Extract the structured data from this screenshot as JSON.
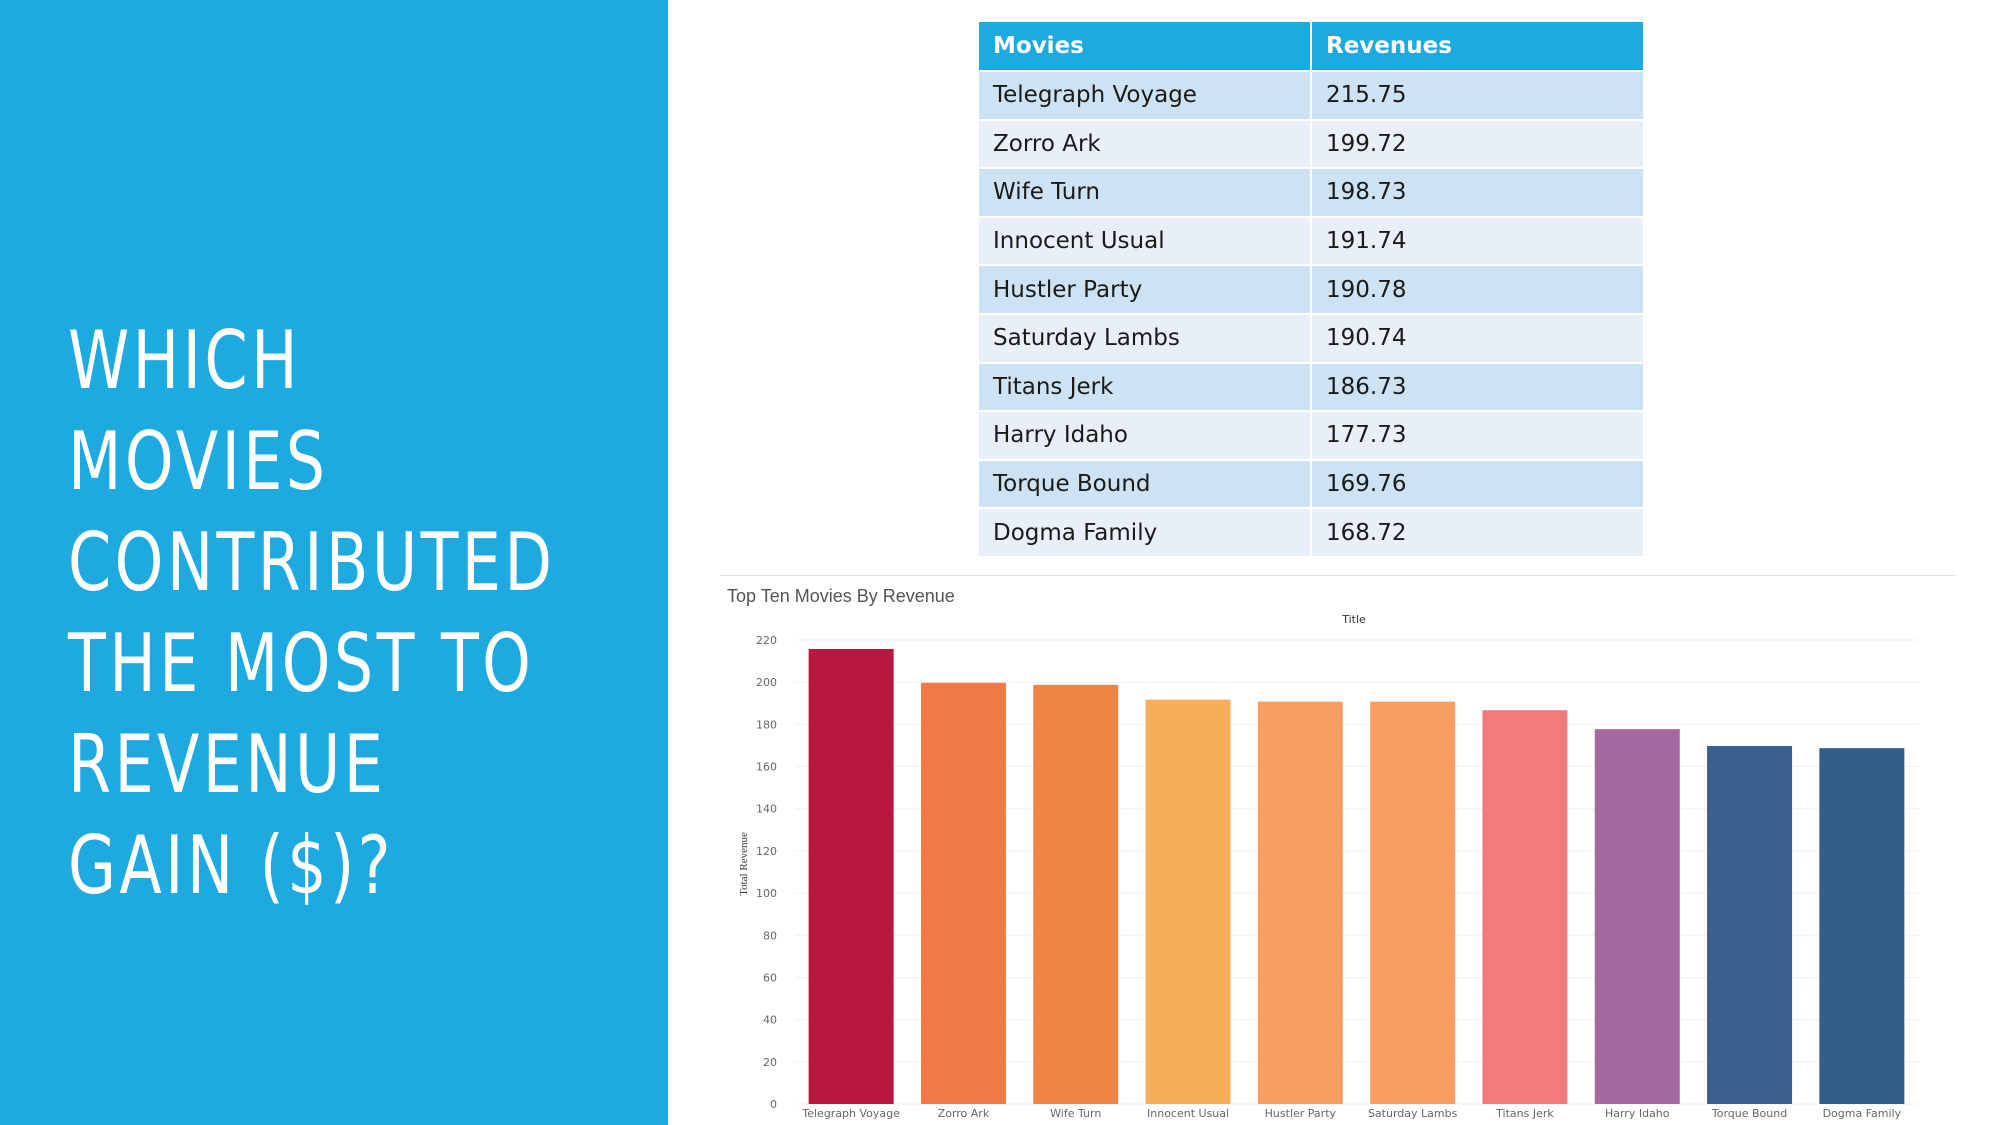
{
  "slide": {
    "title": "WHICH MOVIES CONTRIBUTED THE MOST TO REVENUE GAIN ($)?",
    "accent_color": "#1ea9e1"
  },
  "table": {
    "headers": [
      "Movies",
      "Revenues"
    ],
    "header_color": "#1ea9e1",
    "row_color_a": "#cde2f3",
    "row_color_b": "#e8eff8",
    "rows": [
      [
        "Telegraph Voyage",
        "215.75"
      ],
      [
        "Zorro Ark",
        "199.72"
      ],
      [
        "Wife Turn",
        "198.73"
      ],
      [
        "Innocent Usual",
        "191.74"
      ],
      [
        "Hustler Party",
        "190.78"
      ],
      [
        "Saturday Lambs",
        "190.74"
      ],
      [
        "Titans Jerk",
        "186.73"
      ],
      [
        "Harry Idaho",
        "177.73"
      ],
      [
        "Torque Bound",
        "169.76"
      ],
      [
        "Dogma Family",
        "168.72"
      ]
    ]
  },
  "chart_data": {
    "type": "bar",
    "title": "Top Ten Movies By Revenue",
    "xlabel": "Title",
    "ylabel": "Total Revenue",
    "ylim": [
      0,
      220
    ],
    "yticks": [
      0,
      20,
      40,
      60,
      80,
      100,
      120,
      140,
      160,
      180,
      200,
      220
    ],
    "grid": true,
    "legend": "none",
    "categories": [
      "Telegraph Voyage",
      "Zorro Ark",
      "Wife Turn",
      "Innocent Usual",
      "Hustler Party",
      "Saturday Lambs",
      "Titans Jerk",
      "Harry Idaho",
      "Torque Bound",
      "Dogma Family"
    ],
    "values": [
      215.75,
      199.72,
      198.73,
      191.74,
      190.78,
      190.74,
      186.73,
      177.73,
      169.76,
      168.72
    ],
    "colors": [
      "#b8183f",
      "#ee7b46",
      "#ee8446",
      "#f7ae5b",
      "#f99d65",
      "#f99d65",
      "#f27a7d",
      "#a5699f",
      "#3a5f8c",
      "#345d87"
    ]
  }
}
